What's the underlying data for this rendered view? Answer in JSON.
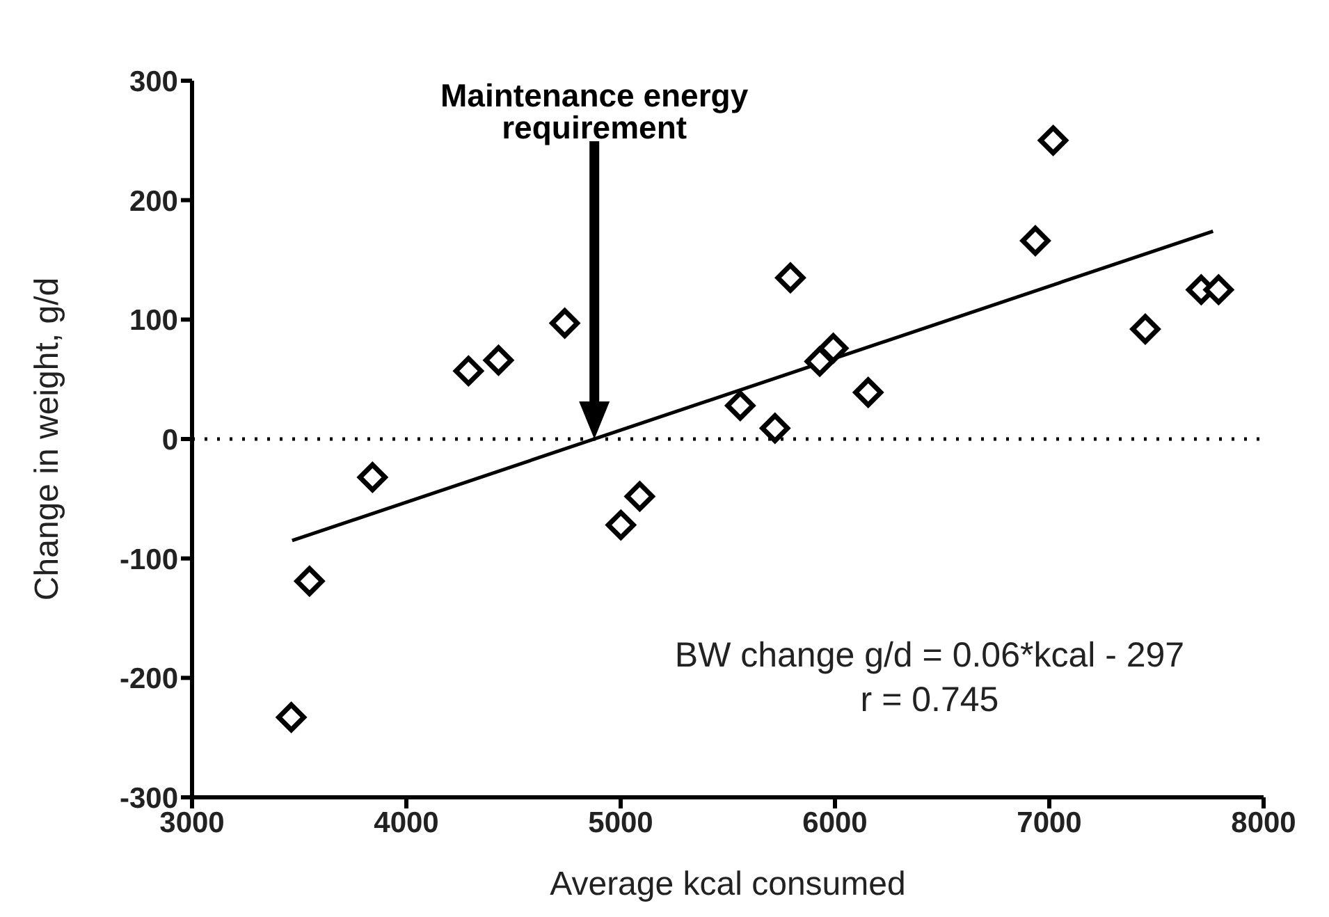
{
  "chart_data": {
    "type": "scatter",
    "xlabel": "Average kcal consumed",
    "ylabel": "Change in weight, g/d",
    "xlim": [
      3000,
      8000
    ],
    "xticks": [
      3000,
      4000,
      5000,
      6000,
      7000,
      8000
    ],
    "ylim": [
      -300,
      300
    ],
    "yticks": [
      -300,
      -200,
      -100,
      0,
      100,
      200,
      300
    ],
    "grid": false,
    "legend": false,
    "series": [
      {
        "color": "#000000",
        "marker": "diamond",
        "x": [
          3463,
          3548,
          3842,
          4290,
          4430,
          4739,
          5001,
          5089,
          5558,
          5720,
          5792,
          5929,
          5992,
          6155,
          6935,
          7018,
          7448,
          7709,
          7790
        ],
        "values": [
          -233,
          -119,
          -32,
          57,
          66,
          97,
          -72,
          -48,
          28,
          9,
          135,
          65,
          76,
          39,
          166,
          250,
          92,
          125,
          125
        ]
      },
      {
        "type": "line",
        "color": "#000000",
        "marker": "none",
        "line_style": "solid",
        "x": [
          3467,
          7764
        ],
        "values": [
          -85,
          174
        ]
      }
    ],
    "ref_lines": [
      {
        "axis": "y",
        "value": 0,
        "color": "#000000",
        "line_style": "dotted"
      }
    ],
    "annotations": [
      "Maintenance energy requirement",
      "BW change g/d = 0.06*kcal - 297",
      "r = 0.745"
    ]
  }
}
